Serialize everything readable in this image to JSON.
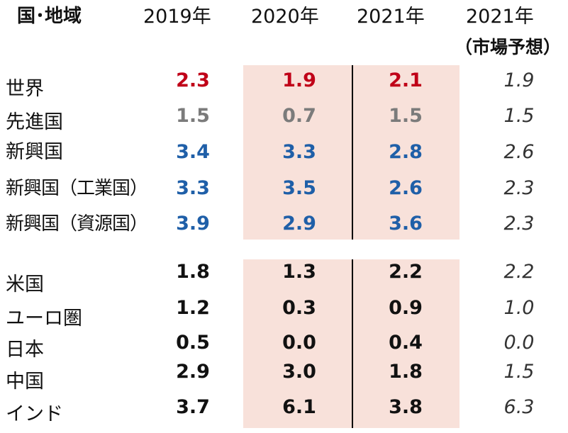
{
  "header": {
    "country": "国･地域",
    "y2019": "2019年",
    "y2020": "2020年",
    "y2021": "2021年",
    "y2021_forecast": "2021年",
    "forecast_sub": "（市場予想）"
  },
  "colors": {
    "world": "#c00018",
    "advanced": "#7b7b7b",
    "emerging": "#1f5fa8",
    "country": "#111111",
    "highlight": "#f8e1da"
  },
  "rows": [
    {
      "label": "世界",
      "y2019": "2.3",
      "y2020": "1.9",
      "y2021": "2.1",
      "forecast": "1.9"
    },
    {
      "label": "先進国",
      "y2019": "1.5",
      "y2020": "0.7",
      "y2021": "1.5",
      "forecast": "1.5"
    },
    {
      "label": "新興国",
      "y2019": "3.4",
      "y2020": "3.3",
      "y2021": "2.8",
      "forecast": "2.6"
    },
    {
      "label": "新興国（工業国）",
      "y2019": "3.3",
      "y2020": "3.5",
      "y2021": "2.6",
      "forecast": "2.3"
    },
    {
      "label": "新興国（資源国）",
      "y2019": "3.9",
      "y2020": "2.9",
      "y2021": "3.6",
      "forecast": "2.3"
    },
    {
      "label": "米国",
      "y2019": "1.8",
      "y2020": "1.3",
      "y2021": "2.2",
      "forecast": "2.2"
    },
    {
      "label": "ユーロ圏",
      "y2019": "1.2",
      "y2020": "0.3",
      "y2021": "0.9",
      "forecast": "1.0"
    },
    {
      "label": "日本",
      "y2019": "0.5",
      "y2020": "0.0",
      "y2021": "0.4",
      "forecast": "0.0"
    },
    {
      "label": "中国",
      "y2019": "2.9",
      "y2020": "3.0",
      "y2021": "1.8",
      "forecast": "1.5"
    },
    {
      "label": "インド",
      "y2019": "3.7",
      "y2020": "6.1",
      "y2021": "3.8",
      "forecast": "6.3"
    }
  ]
}
